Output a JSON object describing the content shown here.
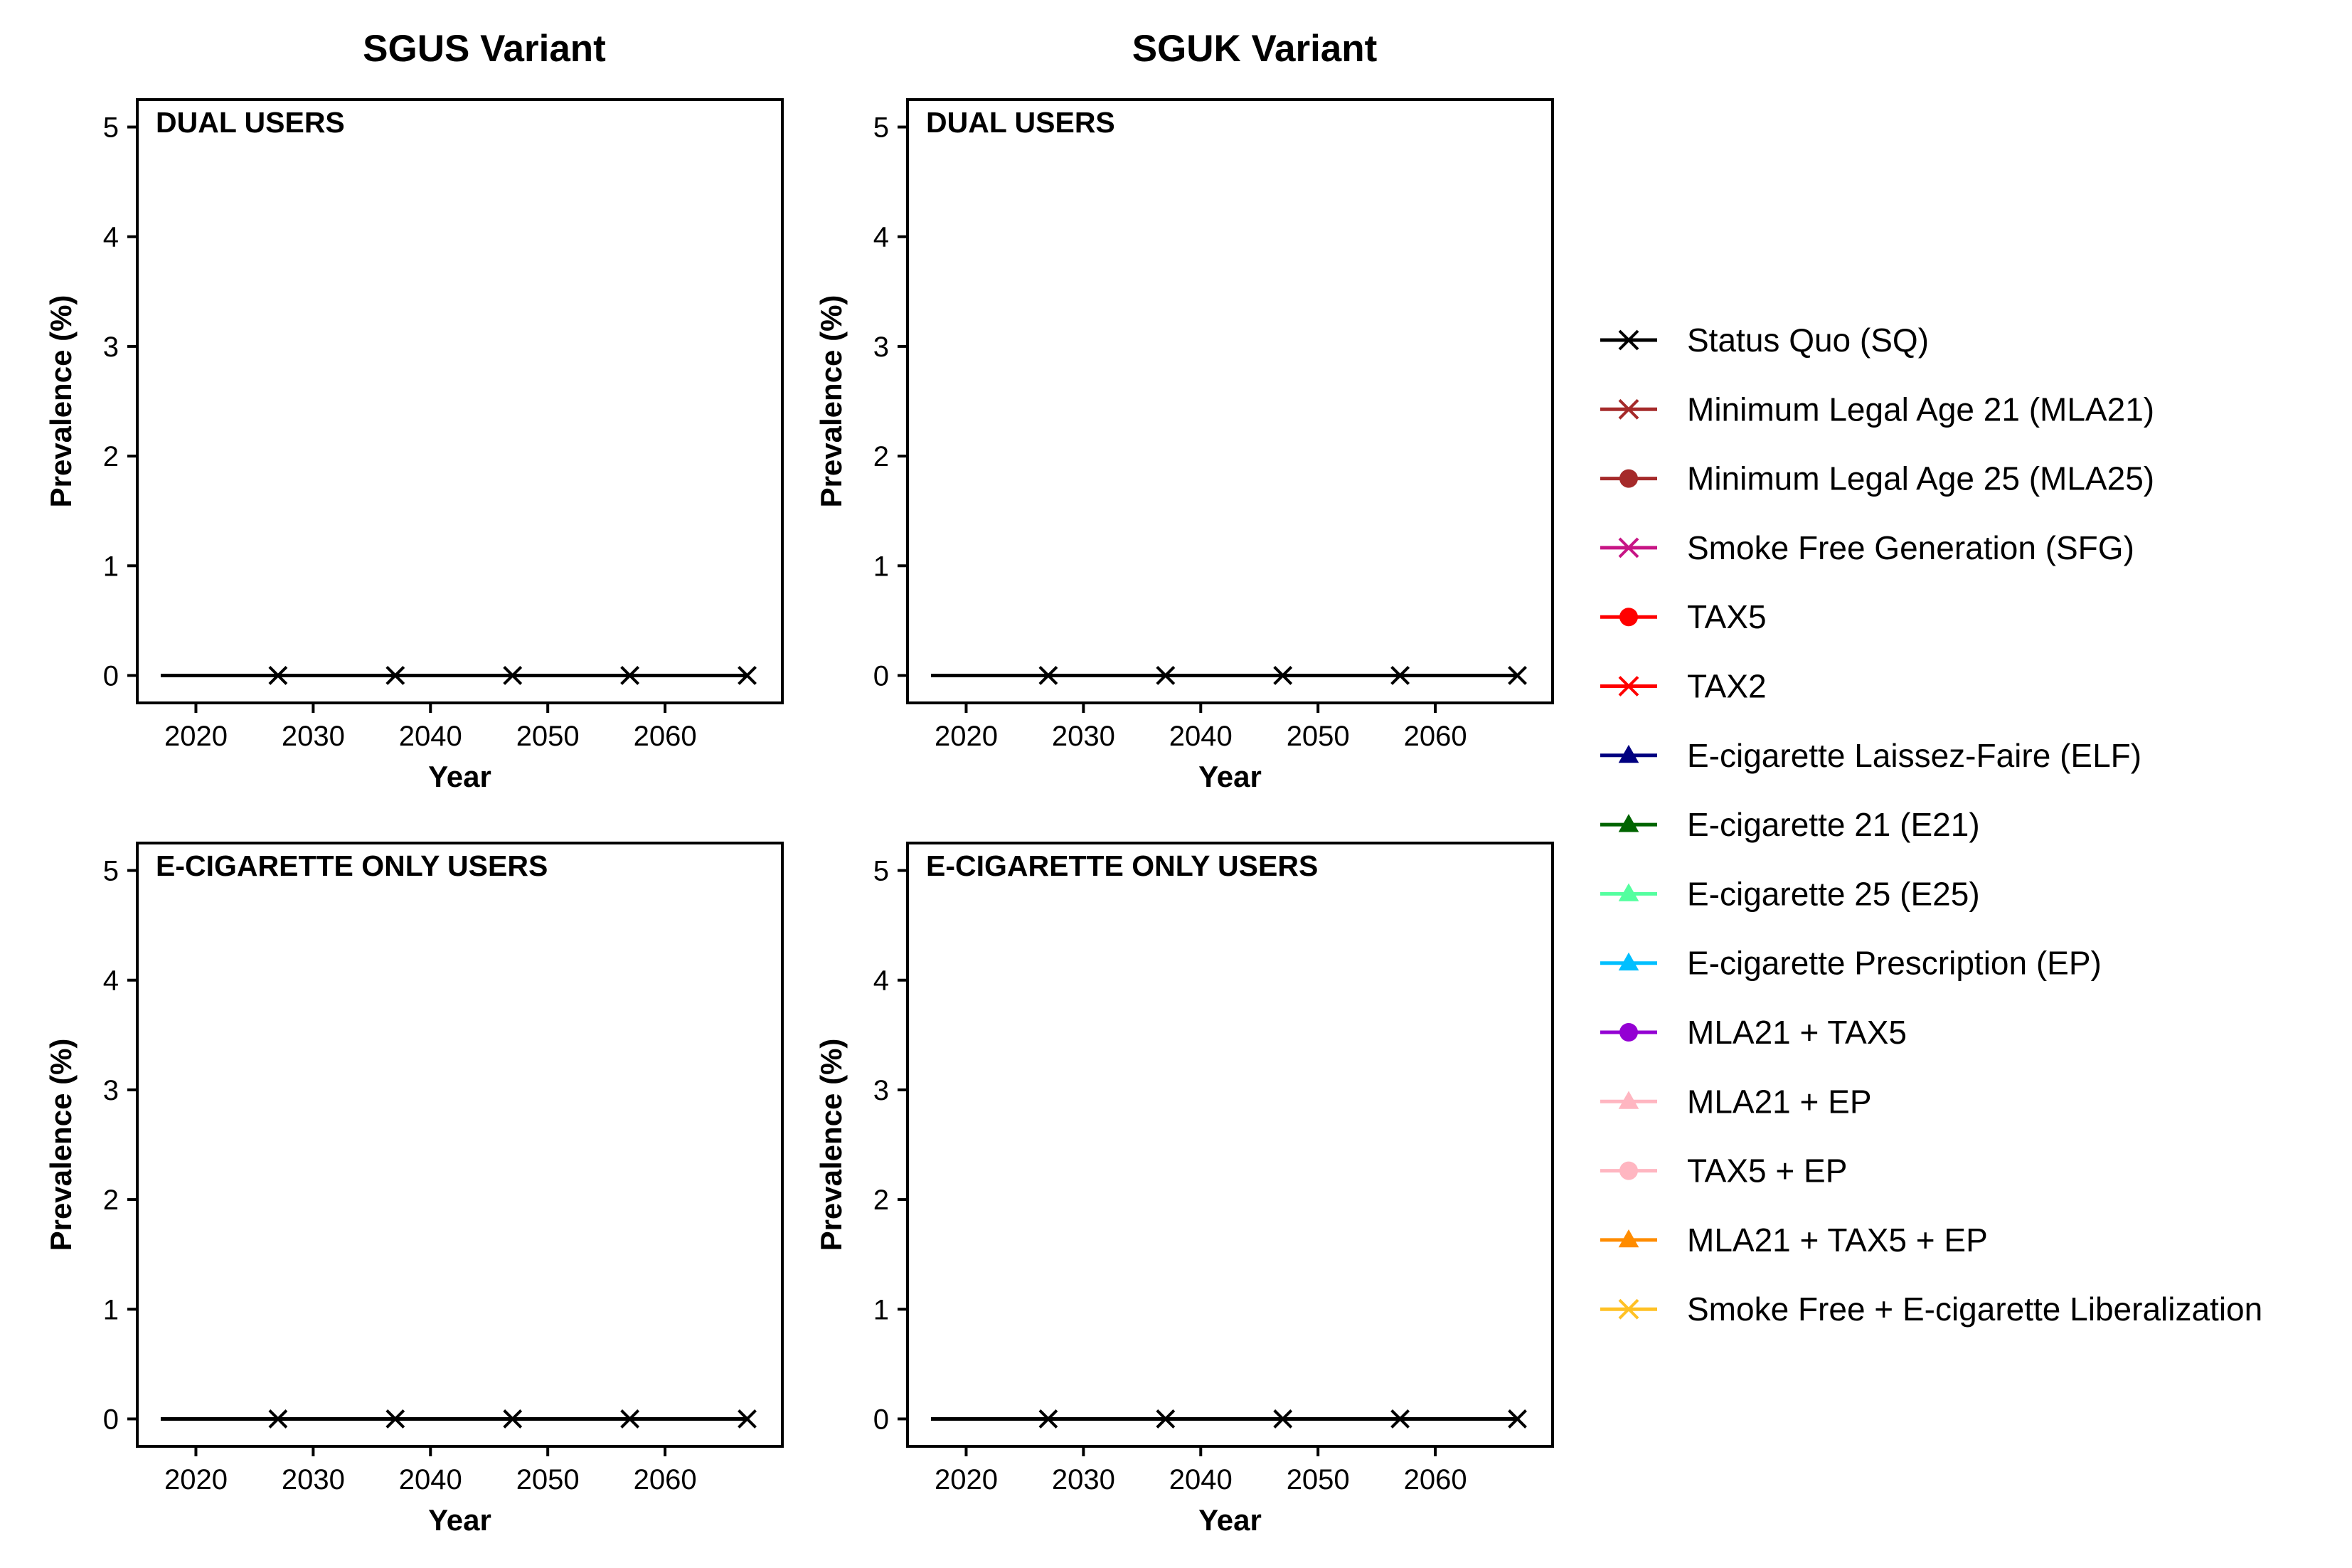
{
  "column_titles": [
    "SGUS Variant",
    "SGUK Variant"
  ],
  "legend": {
    "items": [
      {
        "label": "Status Quo (SQ)",
        "color": "#000000",
        "marker": "x"
      },
      {
        "label": "Minimum Legal Age 21 (MLA21)",
        "color": "#a52a2a",
        "marker": "x"
      },
      {
        "label": "Minimum Legal Age 25 (MLA25)",
        "color": "#a52a2a",
        "marker": "circle"
      },
      {
        "label": "Smoke Free Generation (SFG)",
        "color": "#c71585",
        "marker": "x"
      },
      {
        "label": "TAX5",
        "color": "#ff0000",
        "marker": "circle"
      },
      {
        "label": "TAX2",
        "color": "#ff0000",
        "marker": "x"
      },
      {
        "label": "E-cigarette Laissez-Faire (ELF)",
        "color": "#000080",
        "marker": "triangle"
      },
      {
        "label": "E-cigarette 21 (E21)",
        "color": "#006400",
        "marker": "triangle"
      },
      {
        "label": "E-cigarette 25 (E25)",
        "color": "#54ff9f",
        "marker": "triangle"
      },
      {
        "label": "E-cigarette Prescription (EP)",
        "color": "#00bfff",
        "marker": "triangle"
      },
      {
        "label": "MLA21 + TAX5",
        "color": "#9400d3",
        "marker": "circle"
      },
      {
        "label": "MLA21 + EP",
        "color": "#ffb6c1",
        "marker": "triangle"
      },
      {
        "label": "TAX5 + EP",
        "color": "#ffb6c1",
        "marker": "circle"
      },
      {
        "label": "MLA21 + TAX5 + EP",
        "color": "#ff8c00",
        "marker": "triangle"
      },
      {
        "label": "Smoke Free + E-cigarette Liberalization",
        "color": "#ffc125",
        "marker": "x"
      }
    ]
  },
  "chart_data": [
    {
      "type": "line",
      "column": "SGUS Variant",
      "title": "DUAL USERS",
      "xlabel": "Year",
      "ylabel": "Prevalence (%)",
      "xlim": [
        2015,
        2070
      ],
      "ylim": [
        -0.25,
        5.25
      ],
      "xticks": [
        2020,
        2030,
        2040,
        2050,
        2060
      ],
      "yticks": [
        0,
        1,
        2,
        3,
        4,
        5
      ],
      "grid": false,
      "series": [
        {
          "name": "Status Quo (SQ)",
          "color": "#000000",
          "x": [
            2017,
            2067
          ],
          "y": [
            0,
            0
          ],
          "marker_x": [
            2027,
            2037,
            2047,
            2057,
            2067
          ]
        }
      ]
    },
    {
      "type": "line",
      "column": "SGUK Variant",
      "title": "DUAL USERS",
      "xlabel": "Year",
      "ylabel": "Prevalence (%)",
      "xlim": [
        2015,
        2070
      ],
      "ylim": [
        -0.25,
        5.25
      ],
      "xticks": [
        2020,
        2030,
        2040,
        2050,
        2060
      ],
      "yticks": [
        0,
        1,
        2,
        3,
        4,
        5
      ],
      "grid": false,
      "series": [
        {
          "name": "Status Quo (SQ)",
          "color": "#000000",
          "x": [
            2017,
            2067
          ],
          "y": [
            0,
            0
          ],
          "marker_x": [
            2027,
            2037,
            2047,
            2057,
            2067
          ]
        }
      ]
    },
    {
      "type": "line",
      "column": "SGUS Variant",
      "title": "E-CIGARETTE ONLY USERS",
      "xlabel": "Year",
      "ylabel": "Prevalence (%)",
      "xlim": [
        2015,
        2070
      ],
      "ylim": [
        -0.25,
        5.25
      ],
      "xticks": [
        2020,
        2030,
        2040,
        2050,
        2060
      ],
      "yticks": [
        0,
        1,
        2,
        3,
        4,
        5
      ],
      "grid": false,
      "series": [
        {
          "name": "Status Quo (SQ)",
          "color": "#000000",
          "x": [
            2017,
            2067
          ],
          "y": [
            0,
            0
          ],
          "marker_x": [
            2027,
            2037,
            2047,
            2057,
            2067
          ]
        }
      ]
    },
    {
      "type": "line",
      "column": "SGUK Variant",
      "title": "E-CIGARETTE ONLY USERS",
      "xlabel": "Year",
      "ylabel": "Prevalence (%)",
      "xlim": [
        2015,
        2070
      ],
      "ylim": [
        -0.25,
        5.25
      ],
      "xticks": [
        2020,
        2030,
        2040,
        2050,
        2060
      ],
      "yticks": [
        0,
        1,
        2,
        3,
        4,
        5
      ],
      "grid": false,
      "series": [
        {
          "name": "Status Quo (SQ)",
          "color": "#000000",
          "x": [
            2017,
            2067
          ],
          "y": [
            0,
            0
          ],
          "marker_x": [
            2027,
            2037,
            2047,
            2057,
            2067
          ]
        }
      ]
    }
  ]
}
